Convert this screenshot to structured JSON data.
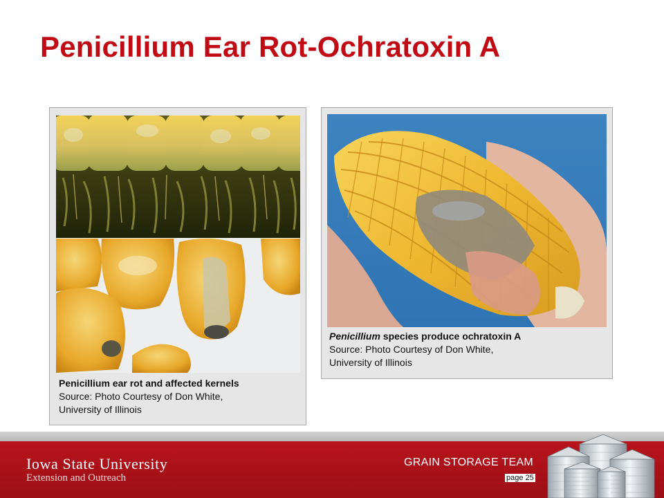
{
  "slide": {
    "title": "Penicillium Ear Rot-Ochratoxin A"
  },
  "left_panel": {
    "caption_title": "Penicillium ear rot and affected kernels",
    "caption_source_1": "Source: Photo Courtesy of Don White,",
    "caption_source_2": "University of Illinois"
  },
  "right_panel": {
    "caption_italic": "Penicillium",
    "caption_rest": " species produce ochratoxin A",
    "caption_source_1": "Source: Photo Courtesy of Don White,",
    "caption_source_2": "University of Illinois"
  },
  "footer": {
    "university": "Iowa State University",
    "unit": "Extension and Outreach",
    "team": "GRAIN STORAGE TEAM",
    "page": "page 25"
  },
  "colors": {
    "title_red": "#c00a14",
    "footer_red": "#b8141c",
    "panel_gray": "#e6e6e6"
  }
}
